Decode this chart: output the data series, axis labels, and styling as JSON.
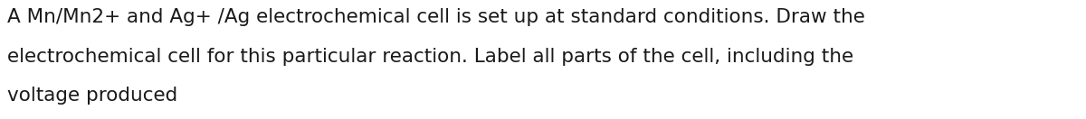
{
  "text_line1": "A Mn/Mn2+ and Ag+ /Ag electrochemical cell is set up at standard conditions. Draw the",
  "text_line2": "electrochemical cell for this particular reaction. Label all parts of the cell, including the",
  "text_line3": "voltage produced",
  "background_color": "#ffffff",
  "text_color": "#1a1a1a",
  "font_size": 15.5,
  "font_family": "DejaVu Sans",
  "fig_width": 12.0,
  "fig_height": 1.32,
  "dpi": 100
}
